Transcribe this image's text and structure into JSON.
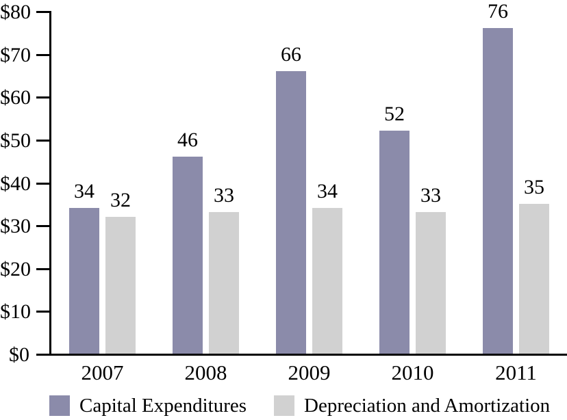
{
  "chart_data": {
    "type": "bar",
    "title": "",
    "categories": [
      "2007",
      "2008",
      "2009",
      "2010",
      "2011"
    ],
    "series": [
      {
        "name": "Capital Expenditures",
        "color": "#8b8baa",
        "values": [
          34,
          46,
          66,
          52,
          76
        ]
      },
      {
        "name": "Depreciation and Amortization",
        "color": "#d1d1d1",
        "values": [
          32,
          33,
          34,
          33,
          35
        ]
      }
    ],
    "value_labels_shown": true,
    "ylabel": "",
    "xlabel": "",
    "ylim": [
      0,
      80
    ],
    "y_tick_step": 10,
    "y_tick_labels": [
      "$0",
      "$10",
      "$20",
      "$30",
      "$40",
      "$50",
      "$60",
      "$70",
      "$80"
    ],
    "grid": false,
    "legend_position": "bottom",
    "axis_color": "#000000",
    "background_color": "#ffffff"
  }
}
